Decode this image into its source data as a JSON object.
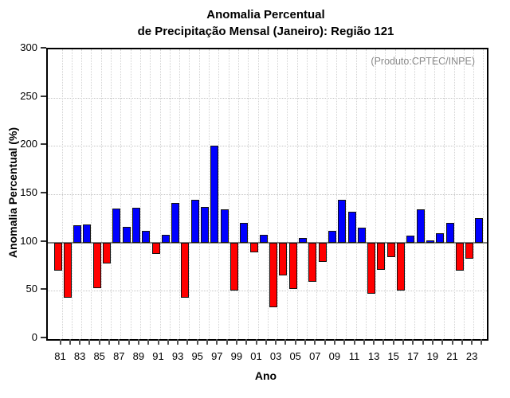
{
  "title": {
    "line1": "Anomalia Percentual",
    "line2": "de Precipitação Mensal (Janeiro): Região 121"
  },
  "annotation": "(Produto:CPTEC/INPE)",
  "axes": {
    "y_label": "Anomalia Percentual (%)",
    "x_label": "Ano",
    "y_ticks": [
      0,
      50,
      100,
      150,
      200,
      250,
      300
    ],
    "x_tick_labels": [
      "81",
      "83",
      "85",
      "87",
      "89",
      "91",
      "93",
      "95",
      "97",
      "99",
      "01",
      "03",
      "05",
      "07",
      "09",
      "11",
      "13",
      "15",
      "17",
      "19",
      "21",
      "23"
    ]
  },
  "colors": {
    "above_baseline": "#0000ff",
    "below_baseline": "#ff0000",
    "baseline_line": "#7f7f7f",
    "grid": "#c4c4c4",
    "annotation_text": "#8a8a8a"
  },
  "chart_data": {
    "type": "bar",
    "title": "Anomalia Percentual de Precipitação Mensal (Janeiro): Região 121",
    "xlabel": "Ano",
    "ylabel": "Anomalia Percentual (%)",
    "ylim": [
      0,
      300
    ],
    "baseline": 100,
    "grid": true,
    "legend_position": "none",
    "categories": [
      "81",
      "82",
      "83",
      "84",
      "85",
      "86",
      "87",
      "88",
      "89",
      "90",
      "91",
      "92",
      "93",
      "94",
      "95",
      "96",
      "97",
      "98",
      "99",
      "00",
      "01",
      "02",
      "03",
      "04",
      "05",
      "06",
      "07",
      "08",
      "09",
      "10",
      "11",
      "12",
      "13",
      "14",
      "15",
      "16",
      "17",
      "18",
      "19",
      "20",
      "21",
      "22",
      "23",
      "24"
    ],
    "values": [
      71,
      43,
      118,
      119,
      53,
      78,
      135,
      116,
      136,
      112,
      88,
      108,
      141,
      43,
      144,
      137,
      200,
      134,
      50,
      120,
      90,
      108,
      33,
      66,
      52,
      105,
      59,
      80,
      112,
      144,
      132,
      115,
      47,
      72,
      85,
      50,
      107,
      134,
      102,
      110,
      120,
      71,
      83,
      125
    ],
    "color_rule": "value >= 100 blue, value < 100 red"
  }
}
